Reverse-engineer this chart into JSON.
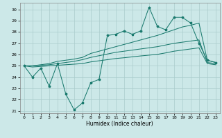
{
  "xlabel": "Humidex (Indice chaleur)",
  "bg_color": "#cce8e8",
  "grid_color": "#aacccc",
  "line_color": "#1a7a6e",
  "xlim": [
    -0.5,
    23.5
  ],
  "ylim": [
    20.8,
    30.6
  ],
  "yticks": [
    21,
    22,
    23,
    24,
    25,
    26,
    27,
    28,
    29,
    30
  ],
  "xticks": [
    0,
    1,
    2,
    3,
    4,
    5,
    6,
    7,
    8,
    9,
    10,
    11,
    12,
    13,
    14,
    15,
    16,
    17,
    18,
    19,
    20,
    21,
    22,
    23
  ],
  "line1_x": [
    0,
    1,
    2,
    3,
    4,
    5,
    6,
    7,
    8,
    9,
    10,
    11,
    12,
    13,
    14,
    15,
    16,
    17,
    18,
    19,
    20,
    21,
    22,
    23
  ],
  "line1_y": [
    25.0,
    24.0,
    24.8,
    23.2,
    25.2,
    22.5,
    21.1,
    21.7,
    23.5,
    23.8,
    27.7,
    27.8,
    28.1,
    27.8,
    28.1,
    30.2,
    28.5,
    28.2,
    29.3,
    29.3,
    28.8,
    27.0,
    25.5,
    25.3
  ],
  "line2_x": [
    0,
    1,
    2,
    3,
    4,
    5,
    6,
    7,
    8,
    9,
    10,
    11,
    12,
    13,
    14,
    15,
    16,
    17,
    18,
    19,
    20,
    21,
    22,
    23
  ],
  "line2_y": [
    25.0,
    25.0,
    25.1,
    25.2,
    25.4,
    25.5,
    25.6,
    25.75,
    26.1,
    26.3,
    26.5,
    26.7,
    26.9,
    27.1,
    27.3,
    27.5,
    27.7,
    27.95,
    28.2,
    28.45,
    28.6,
    28.8,
    25.5,
    25.3
  ],
  "line3_x": [
    0,
    1,
    2,
    3,
    4,
    5,
    6,
    7,
    8,
    9,
    10,
    11,
    12,
    13,
    14,
    15,
    16,
    17,
    18,
    19,
    20,
    21,
    22,
    23
  ],
  "line3_y": [
    25.0,
    25.0,
    25.05,
    25.1,
    25.2,
    25.3,
    25.4,
    25.55,
    25.75,
    25.9,
    26.05,
    26.2,
    26.3,
    26.4,
    26.5,
    26.6,
    26.7,
    26.85,
    27.0,
    27.1,
    27.2,
    27.3,
    25.3,
    25.2
  ],
  "line4_x": [
    0,
    1,
    2,
    3,
    4,
    5,
    6,
    7,
    8,
    9,
    10,
    11,
    12,
    13,
    14,
    15,
    16,
    17,
    18,
    19,
    20,
    21,
    22,
    23
  ],
  "line4_y": [
    25.0,
    24.9,
    24.95,
    25.0,
    25.05,
    25.1,
    25.15,
    25.2,
    25.35,
    25.45,
    25.55,
    25.65,
    25.72,
    25.8,
    25.88,
    25.95,
    26.02,
    26.15,
    26.3,
    26.4,
    26.5,
    26.6,
    25.2,
    25.1
  ]
}
